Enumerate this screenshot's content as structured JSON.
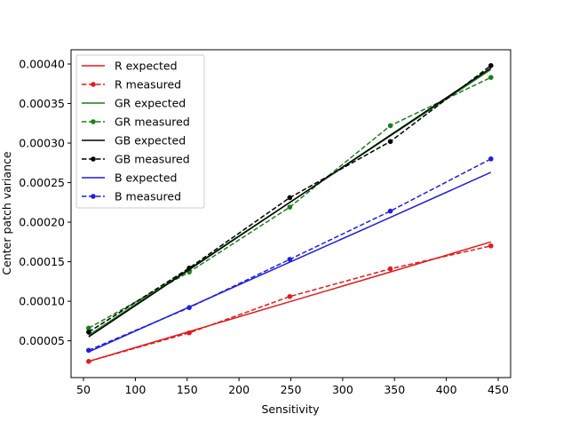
{
  "chart_data": {
    "type": "line",
    "title": "",
    "xlabel": "Sensitivity",
    "ylabel": "Center patch variance",
    "xlim": [
      38,
      462
    ],
    "ylim": [
      3.5e-06,
      0.000418
    ],
    "xticks": [
      50,
      100,
      150,
      200,
      250,
      300,
      350,
      400,
      450
    ],
    "xtick_labels": [
      "50",
      "100",
      "150",
      "200",
      "250",
      "300",
      "350",
      "400",
      "450"
    ],
    "yticks": [
      5e-05,
      0.0001,
      0.00015,
      0.0002,
      0.00025,
      0.0003,
      0.00035,
      0.0004
    ],
    "ytick_labels": [
      "0.00005",
      "0.00010",
      "0.00015",
      "0.00020",
      "0.00025",
      "0.00030",
      "0.00035",
      "0.00040"
    ],
    "grid": false,
    "legend_placement": "upper-left",
    "x": [
      55,
      152,
      249,
      346,
      443
    ],
    "series": [
      {
        "name": "R expected",
        "color": "#e41a1c",
        "style": "solid",
        "values": [
          2.4e-05,
          6.17e-05,
          9.95e-05,
          0.000137,
          0.000175
        ]
      },
      {
        "name": "R measured",
        "color": "#e41a1c",
        "style": "dashed-dot",
        "values": [
          2.4e-05,
          6e-05,
          0.000106,
          0.000141,
          0.00017
        ]
      },
      {
        "name": "GR expected",
        "color": "#1a7f1a",
        "style": "solid",
        "values": [
          5.7e-05,
          0.000141,
          0.000225,
          0.000309,
          0.000393
        ]
      },
      {
        "name": "GR measured",
        "color": "#1a7f1a",
        "style": "dashed-dot",
        "values": [
          6.6e-05,
          0.000137,
          0.000219,
          0.000322,
          0.000383
        ]
      },
      {
        "name": "GB expected",
        "color": "#000000",
        "style": "solid",
        "values": [
          5.5e-05,
          0.00014,
          0.000225,
          0.00031,
          0.000395
        ]
      },
      {
        "name": "GB measured",
        "color": "#000000",
        "style": "dashed-dot",
        "values": [
          6.1e-05,
          0.000142,
          0.000231,
          0.000302,
          0.000398
        ]
      },
      {
        "name": "B expected",
        "color": "#1f1fdf",
        "style": "solid",
        "values": [
          3.6e-05,
          9.27e-05,
          0.0001495,
          0.000206,
          0.000263
        ]
      },
      {
        "name": "B measured",
        "color": "#1f1fdf",
        "style": "dashed-dot",
        "values": [
          3.8e-05,
          9.2e-05,
          0.000153,
          0.000214,
          0.00028
        ]
      }
    ]
  }
}
